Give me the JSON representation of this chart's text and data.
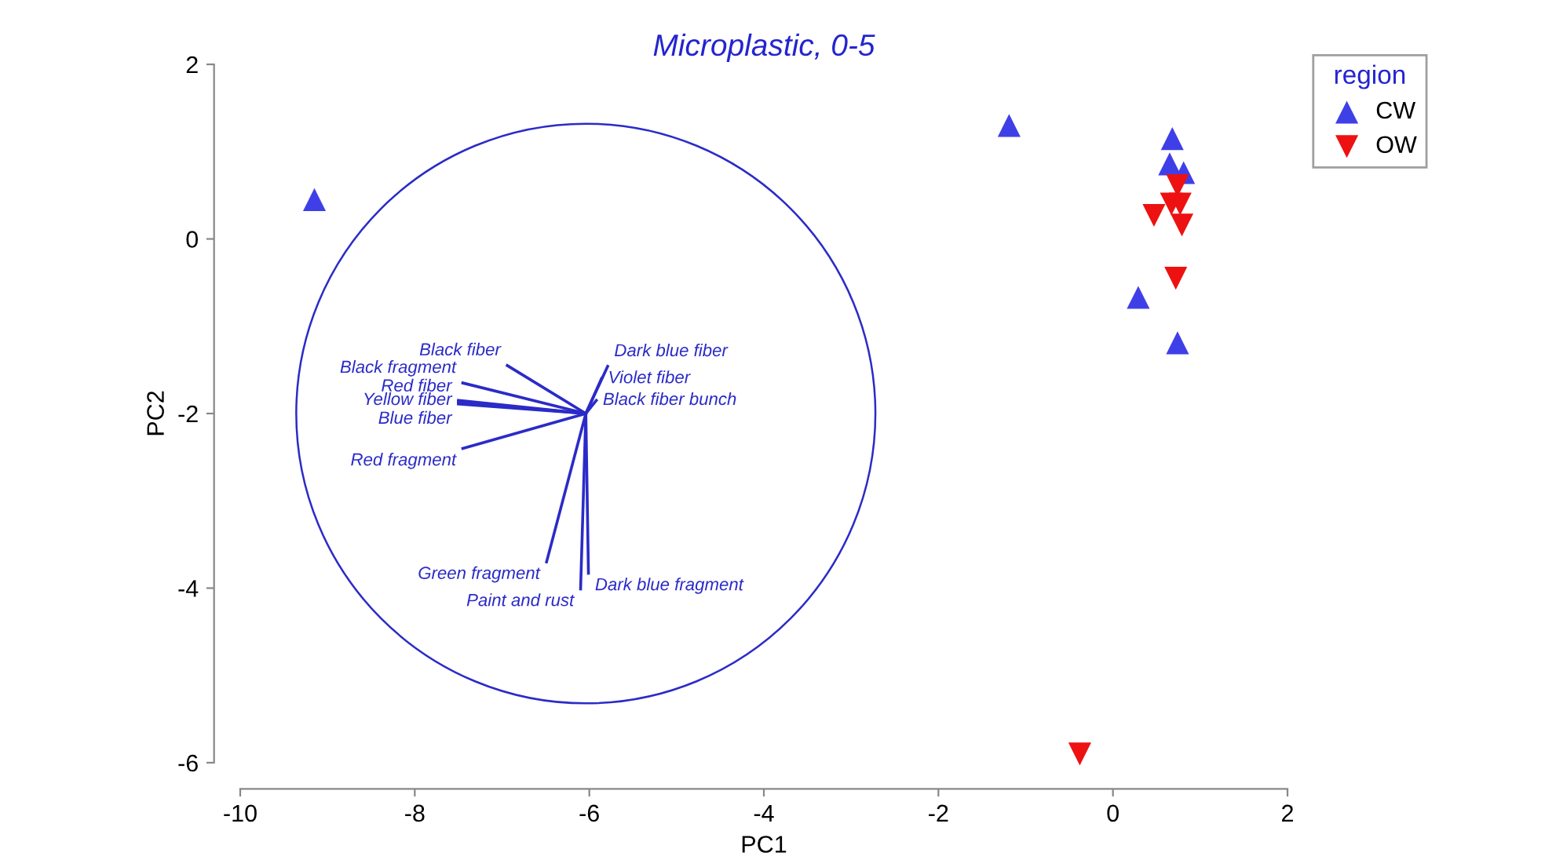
{
  "chart_data": {
    "type": "scatter",
    "title": "Microplastic, 0-5",
    "xlabel": "PC1",
    "ylabel": "PC2",
    "legend_title": "region",
    "legend": "top right",
    "grid": false,
    "xlim": [
      -10,
      2
    ],
    "ylim": [
      -6,
      2
    ],
    "xticks": [
      -10,
      -8,
      -6,
      -4,
      -2,
      0,
      2
    ],
    "yticks": [
      -6,
      -4,
      -2,
      0,
      2
    ],
    "series": [
      {
        "name": "CW",
        "color": "#3f3fe8",
        "marker": "triangle",
        "x": [
          -9.15,
          -1.19,
          0.68,
          0.65,
          0.81,
          0.29,
          0.74
        ],
        "values": [
          0.45,
          1.3,
          1.15,
          0.86,
          0.76,
          -0.67,
          -1.19
        ]
      },
      {
        "name": "OW",
        "color": "#ee1111",
        "marker": "triangle_down",
        "x": [
          0.74,
          0.67,
          0.77,
          0.47,
          0.79,
          0.72,
          -0.38
        ],
        "values": [
          0.61,
          0.4,
          0.4,
          0.27,
          0.16,
          -0.45,
          -5.9
        ]
      },
      {
        "type": "line",
        "name": "Black fiber",
        "color": "#2b2bc8",
        "x": [
          -6.04,
          -6.94
        ],
        "values": [
          -2.0,
          -1.45
        ]
      },
      {
        "type": "line",
        "name": "Black fragment",
        "color": "#2b2bc8",
        "x": [
          -6.04,
          -7.45
        ],
        "values": [
          -2.0,
          -1.65
        ]
      },
      {
        "type": "line",
        "name": "Yellow fiber",
        "color": "#2b2bc8",
        "x": [
          -6.04,
          -7.5
        ],
        "values": [
          -2.0,
          -1.85
        ]
      },
      {
        "type": "line",
        "name": "Blue fiber",
        "color": "#2b2bc8",
        "x": [
          -6.04,
          -7.5
        ],
        "values": [
          -2.0,
          -1.89
        ]
      },
      {
        "type": "line",
        "name": "Red fiber",
        "color": "#2b2bc8",
        "x": [
          -6.04,
          -7.5
        ],
        "values": [
          -2.0,
          -1.87
        ]
      },
      {
        "type": "line",
        "name": "Red fragment",
        "color": "#2b2bc8",
        "x": [
          -6.04,
          -7.45
        ],
        "values": [
          -2.0,
          -2.4
        ]
      },
      {
        "type": "line",
        "name": "Green fragment",
        "color": "#2b2bc8",
        "x": [
          -6.04,
          -6.49
        ],
        "values": [
          -2.0,
          -3.7
        ]
      },
      {
        "type": "line",
        "name": "Paint and rust",
        "color": "#2b2bc8",
        "x": [
          -6.04,
          -6.1
        ],
        "values": [
          -2.0,
          -4.01
        ]
      },
      {
        "type": "line",
        "name": "Dark blue fragment",
        "color": "#2b2bc8",
        "x": [
          -6.04,
          -6.01
        ],
        "values": [
          -2.0,
          -3.83
        ]
      },
      {
        "type": "line",
        "name": "Dark blue fiber",
        "color": "#2b2bc8",
        "x": [
          -6.04,
          -5.79
        ],
        "values": [
          -2.0,
          -1.46
        ]
      },
      {
        "type": "line",
        "name": "Violet fiber",
        "color": "#2b2bc8",
        "x": [
          -6.04,
          -5.86
        ],
        "values": [
          -2.0,
          -1.6
        ]
      },
      {
        "type": "line",
        "name": "Black fiber bunch",
        "color": "#2b2bc8",
        "x": [
          -6.04,
          -5.92
        ],
        "values": [
          -2.0,
          -1.85
        ]
      }
    ]
  }
}
